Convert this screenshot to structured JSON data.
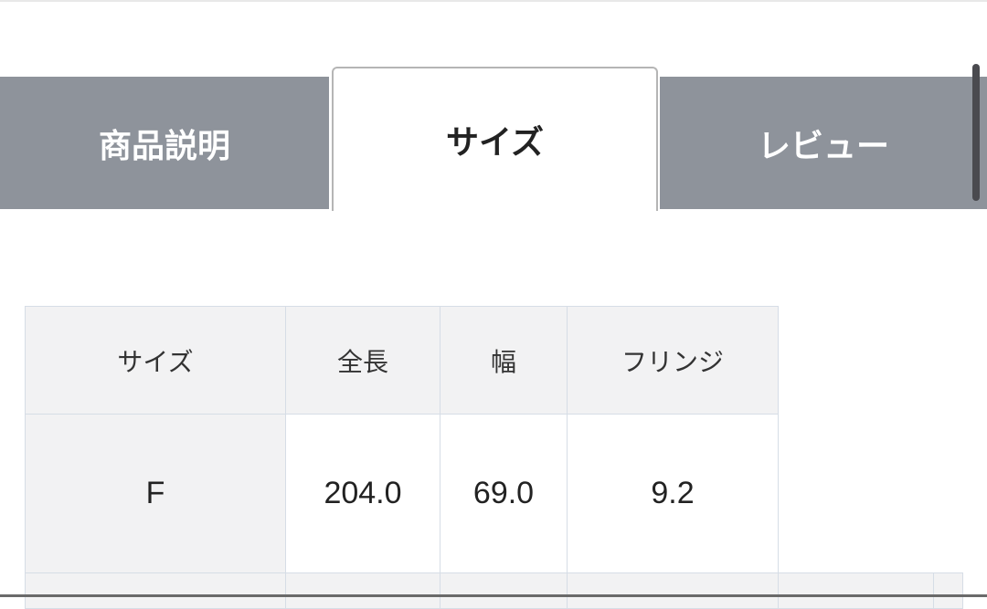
{
  "tabs": [
    {
      "label": "商品説明",
      "active": false
    },
    {
      "label": "サイズ",
      "active": true
    },
    {
      "label": "レビュー",
      "active": false
    }
  ],
  "size_table": {
    "headers": [
      "サイズ",
      "全長",
      "幅",
      "フリンジ"
    ],
    "rows": [
      [
        "F",
        "204.0",
        "69.0",
        "9.2"
      ]
    ]
  },
  "colors": {
    "inactive_tab": "#8e939b",
    "header_bg": "#f2f2f3",
    "border": "#d6dde6"
  }
}
